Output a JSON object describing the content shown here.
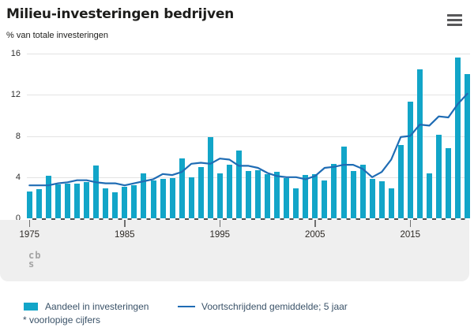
{
  "header": {
    "title": "Milieu-investeringen bedrijven",
    "subtitle": "% van totale investeringen",
    "menu_icon": "hamburger-icon"
  },
  "chart_data": {
    "type": "bar",
    "title": "Milieu-investeringen bedrijven",
    "ylabel": "% van totale investeringen",
    "xlabel": "",
    "ylim": [
      0,
      16
    ],
    "yticks": [
      0,
      4,
      8,
      12,
      16
    ],
    "xticks": [
      1975,
      1985,
      1995,
      2005,
      2015
    ],
    "grid": true,
    "legend_position": "bottom",
    "x": [
      1975,
      1976,
      1977,
      1978,
      1979,
      1980,
      1981,
      1982,
      1983,
      1984,
      1985,
      1986,
      1987,
      1988,
      1989,
      1990,
      1991,
      1992,
      1993,
      1994,
      1995,
      1996,
      1997,
      1998,
      1999,
      2000,
      2001,
      2002,
      2003,
      2004,
      2005,
      2006,
      2007,
      2008,
      2009,
      2010,
      2011,
      2012,
      2013,
      2014,
      2015,
      2016,
      2017,
      2018,
      2019,
      2020,
      2021
    ],
    "series": [
      {
        "name": "Aandeel in investeringen",
        "type": "bar",
        "color": "#12a5c8",
        "values": [
          2.6,
          2.8,
          4.1,
          3.3,
          3.4,
          3.4,
          3.5,
          5.1,
          2.9,
          2.5,
          3.1,
          3.2,
          4.4,
          3.7,
          3.8,
          3.9,
          5.8,
          4.0,
          5.0,
          7.9,
          4.4,
          5.2,
          6.6,
          4.6,
          4.7,
          4.3,
          4.5,
          3.9,
          2.9,
          4.2,
          4.3,
          3.7,
          5.3,
          7.0,
          4.6,
          5.2,
          3.8,
          3.6,
          2.9,
          7.1,
          11.3,
          14.5,
          4.4,
          8.1,
          6.8,
          15.6,
          14.0
        ]
      },
      {
        "name": "Voortschrijdend gemiddelde; 5 jaar",
        "type": "line",
        "color": "#1f6cb4",
        "values": [
          3.2,
          3.2,
          3.2,
          3.4,
          3.5,
          3.7,
          3.7,
          3.5,
          3.4,
          3.4,
          3.2,
          3.4,
          3.6,
          3.8,
          4.3,
          4.2,
          4.5,
          5.3,
          5.4,
          5.3,
          5.8,
          5.7,
          5.1,
          5.1,
          4.9,
          4.4,
          4.1,
          4.0,
          4.0,
          3.8,
          4.1,
          4.9,
          5.0,
          5.2,
          5.2,
          4.8,
          4.0,
          4.5,
          5.7,
          7.9,
          8.0,
          9.1,
          9.0,
          9.9,
          9.8,
          11.1,
          12.1
        ]
      }
    ]
  },
  "legend": {
    "items": [
      {
        "label": "Aandeel in investeringen",
        "marker": "swatch",
        "color": "#12a5c8"
      },
      {
        "label": "Voortschrijdend gemiddelde; 5 jaar",
        "marker": "line",
        "color": "#1f6cb4"
      }
    ]
  },
  "footnote": "* voorlopige cijfers",
  "branding": {
    "logo_line1": "cb",
    "logo_line2": "s"
  },
  "colors": {
    "bar": "#12a5c8",
    "trend_line": "#1f6cb4",
    "gridline": "#e3e3e3",
    "footer_band": "#efefef",
    "text_dark": "#1d1d1b",
    "legend_text": "#3a5268",
    "menu_icon": "#58585a"
  }
}
